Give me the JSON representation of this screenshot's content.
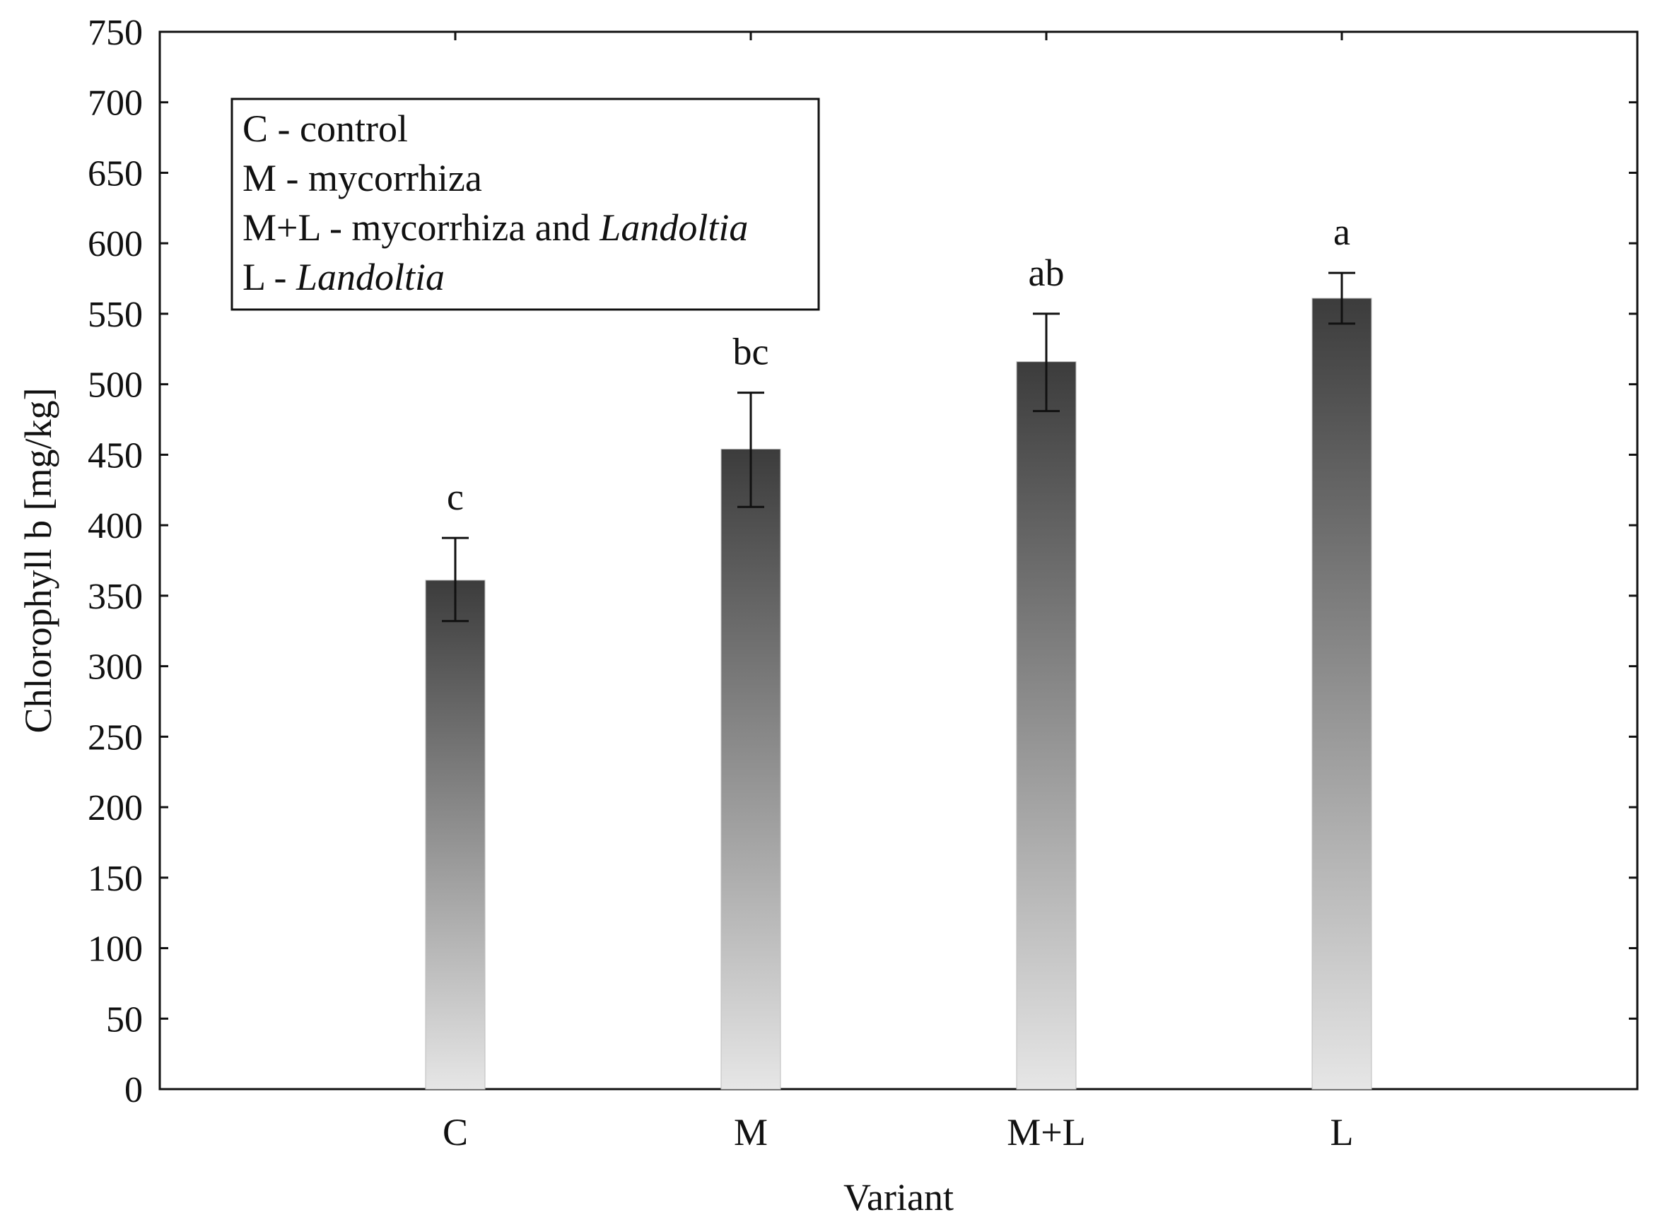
{
  "chart_data": {
    "type": "bar",
    "categories": [
      "C",
      "M",
      "M+L",
      "L"
    ],
    "values": [
      361,
      454,
      516,
      561
    ],
    "errors": [
      {
        "low": 332,
        "high": 391
      },
      {
        "low": 413,
        "high": 494
      },
      {
        "low": 481,
        "high": 550
      },
      {
        "low": 543,
        "high": 579
      }
    ],
    "significance_labels": [
      "c",
      "bc",
      "ab",
      "a"
    ],
    "title": "",
    "xlabel": "Variant",
    "ylabel": "Chlorophyll b [mg/kg]",
    "ylim": [
      0,
      750
    ],
    "yticks": [
      0,
      50,
      100,
      150,
      200,
      250,
      300,
      350,
      400,
      450,
      500,
      550,
      600,
      650,
      700,
      750
    ],
    "grid": false,
    "legend_position": "top-left",
    "legend": [
      {
        "segments": [
          {
            "text": "C - control",
            "italic": false
          }
        ]
      },
      {
        "segments": [
          {
            "text": "M - mycorrhiza",
            "italic": false
          }
        ]
      },
      {
        "segments": [
          {
            "text": "M+L - mycorrhiza and ",
            "italic": false
          },
          {
            "text": "Landoltia",
            "italic": true
          }
        ]
      },
      {
        "segments": [
          {
            "text": "L - ",
            "italic": false
          },
          {
            "text": "Landoltia",
            "italic": true
          }
        ]
      }
    ],
    "colors": {
      "bar_top": "#3c3c3c",
      "bar_bottom": "#e6e6e6",
      "axis": "#111111"
    }
  }
}
